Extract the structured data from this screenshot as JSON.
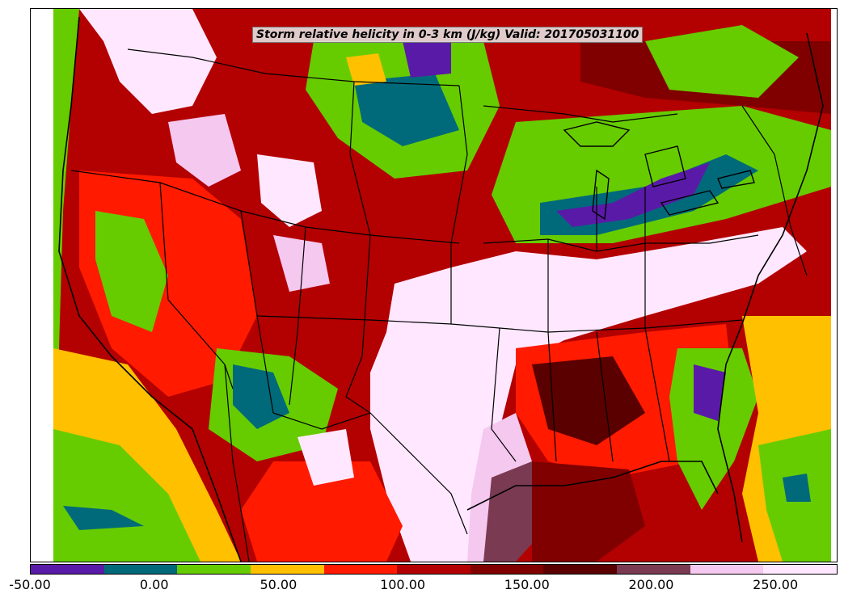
{
  "title": "Storm relative helicity in 0-3 km (J/kg) Valid: 201705031100",
  "colorbar": {
    "colors": [
      "#5a1aa8",
      "#006a7a",
      "#66cc00",
      "#ffc000",
      "#ff1a00",
      "#b30000",
      "#800000",
      "#5a0000",
      "#7a3a52",
      "#f5c8f0",
      "#ffe8ff"
    ],
    "ticks": [
      {
        "value": -50,
        "label": "-50.00"
      },
      {
        "value": 0,
        "label": "0.00"
      },
      {
        "value": 50,
        "label": "50.00"
      },
      {
        "value": 100,
        "label": "100.00"
      },
      {
        "value": 150,
        "label": "150.00"
      },
      {
        "value": 200,
        "label": "200.00"
      },
      {
        "value": 250,
        "label": "250.00"
      }
    ],
    "range": [
      -50,
      275
    ]
  }
}
